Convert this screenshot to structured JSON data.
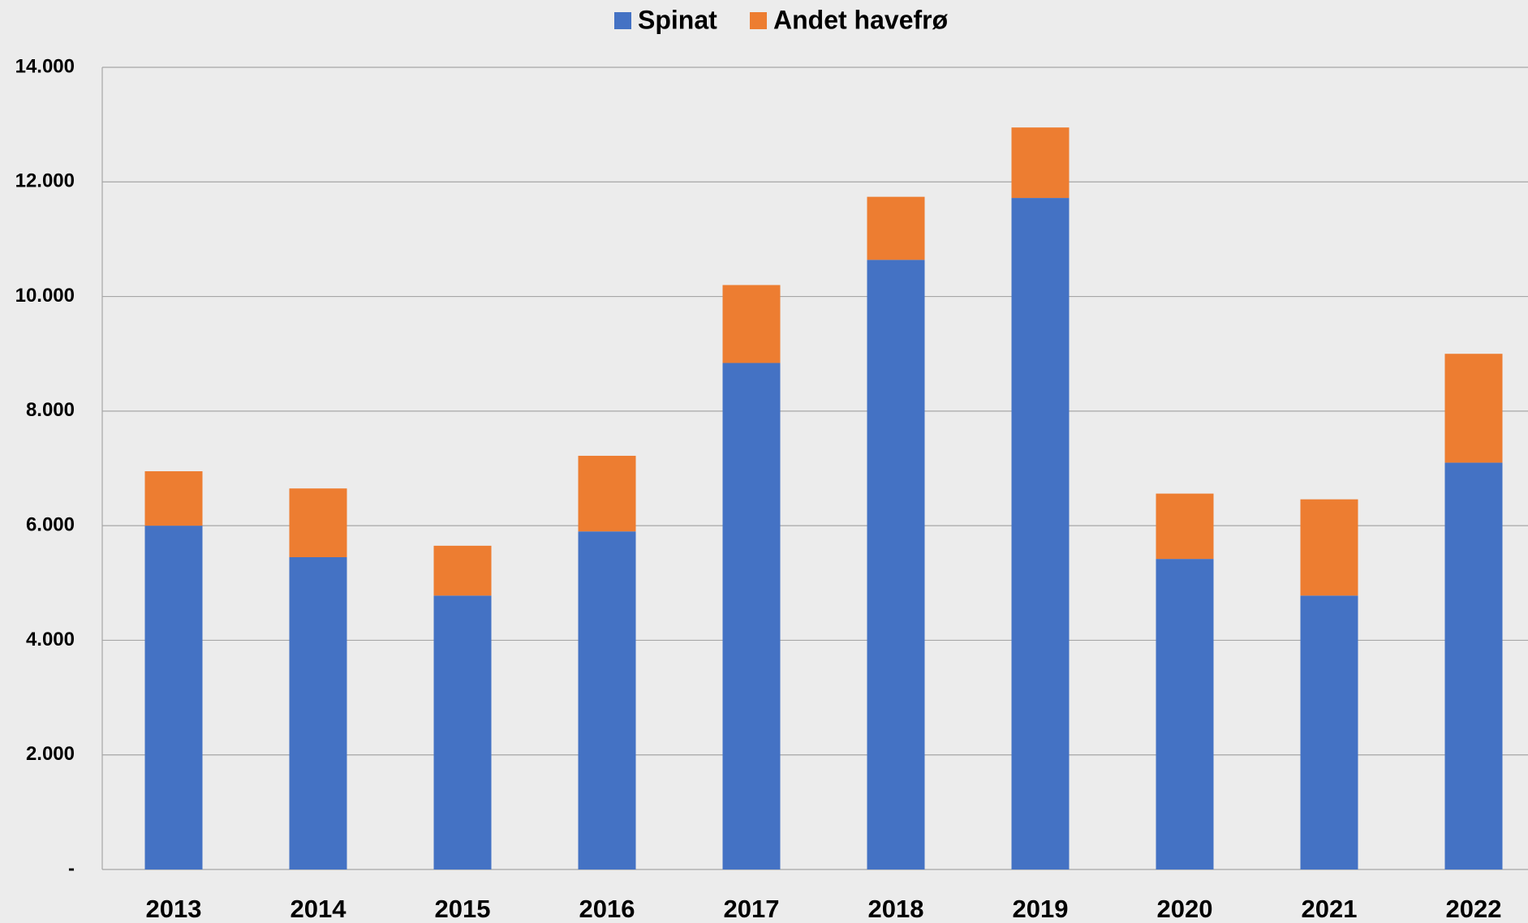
{
  "chart_data": {
    "type": "stacked_bar",
    "categories": [
      "2013",
      "2014",
      "2015",
      "2016",
      "2017",
      "2018",
      "2019",
      "2020",
      "2021",
      "2022"
    ],
    "series": [
      {
        "name": "Spinat",
        "color": "#4472c4",
        "values": [
          6000,
          5450,
          4780,
          5900,
          8840,
          10640,
          11720,
          5420,
          4780,
          7100
        ]
      },
      {
        "name": "Andet havefrø",
        "color": "#ed7d31",
        "values": [
          950,
          1200,
          870,
          1320,
          1360,
          1100,
          1230,
          1140,
          1680,
          1900
        ]
      }
    ],
    "ylim": [
      0,
      14000
    ],
    "yticks": [
      {
        "value": 0,
        "label": "-"
      },
      {
        "value": 2000,
        "label": "2.000"
      },
      {
        "value": 4000,
        "label": "4.000"
      },
      {
        "value": 6000,
        "label": "6.000"
      },
      {
        "value": 8000,
        "label": "8.000"
      },
      {
        "value": 10000,
        "label": "10.000"
      },
      {
        "value": 12000,
        "label": "12.000"
      },
      {
        "value": 14000,
        "label": "14.000"
      }
    ],
    "grid": true,
    "legend": "top"
  }
}
